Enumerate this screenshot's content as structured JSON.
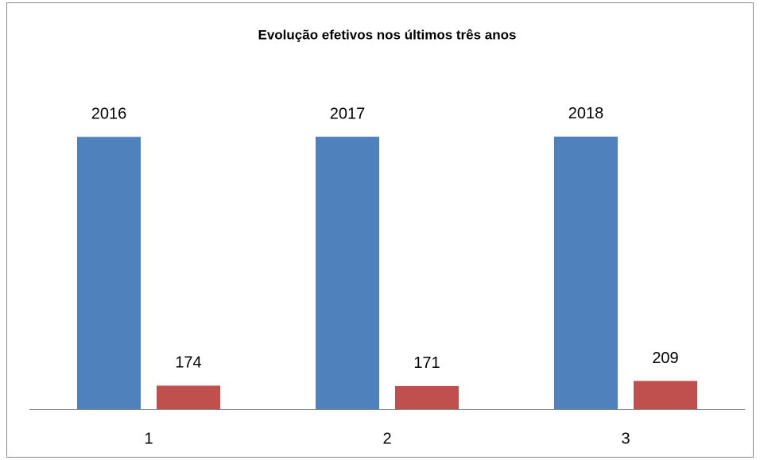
{
  "chart_data": {
    "type": "bar",
    "title": "Evolução efetivos nos últimos três anos",
    "categories": [
      "1",
      "2",
      "3"
    ],
    "series": [
      {
        "color": "#4f81bd",
        "values": [
          2016,
          2017,
          2018
        ]
      },
      {
        "color": "#c0504d",
        "values": [
          174,
          171,
          209
        ]
      }
    ],
    "ylim": [
      0,
      2500
    ]
  }
}
